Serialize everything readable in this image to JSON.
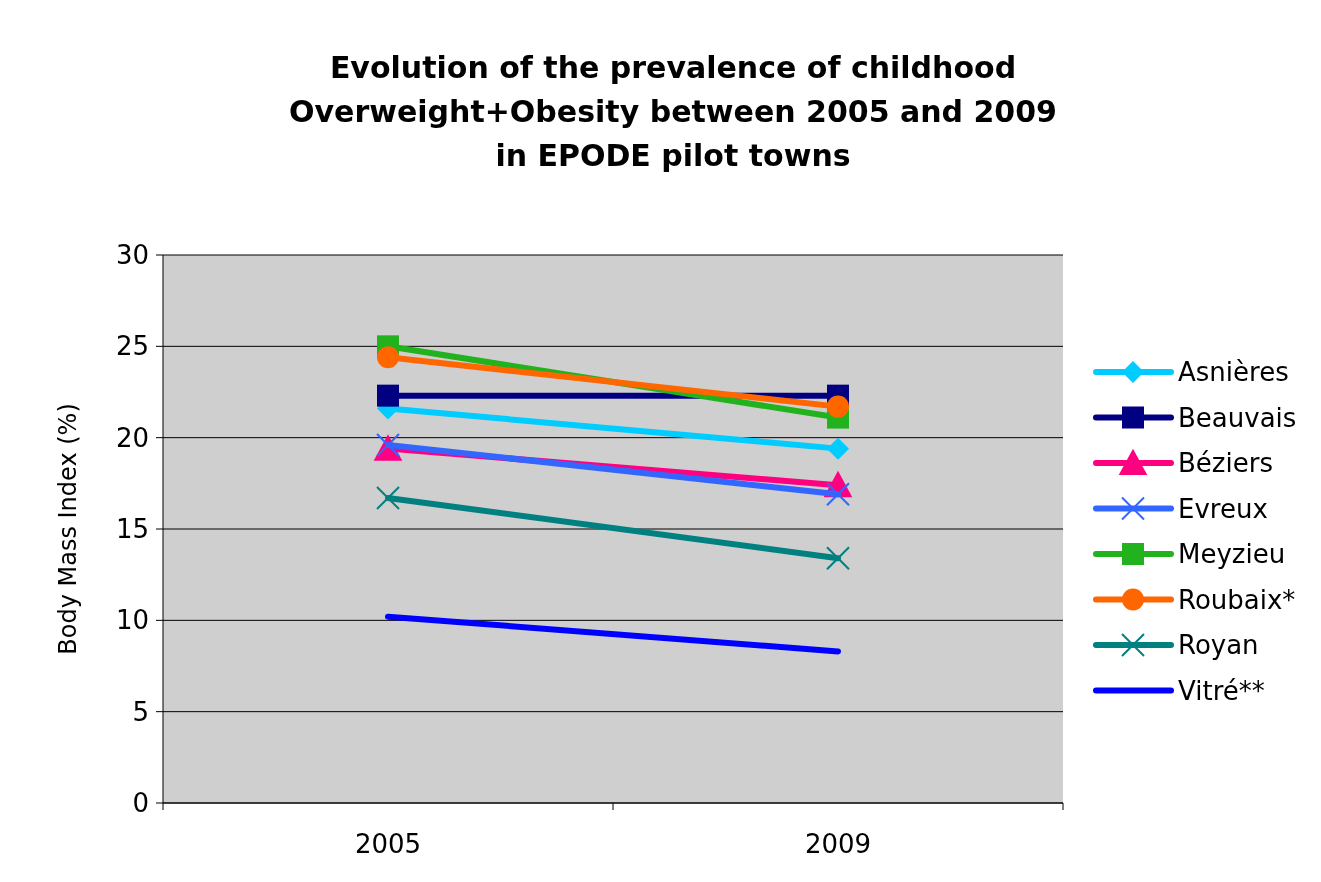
{
  "chart_data": {
    "type": "line",
    "title": "Evolution of the prevalence of childhood Overweight+Obesity between 2005 and 2009 in EPODE pilot towns",
    "ylabel": "Body Mass Index (%)",
    "categories": [
      "2005",
      "2009"
    ],
    "ylim": [
      0,
      30
    ],
    "yticks": [
      0,
      5,
      10,
      15,
      20,
      25,
      30
    ],
    "grid": "y",
    "legend": "right",
    "series": [
      {
        "name": "Asnières",
        "color": "#00ccff",
        "marker": "diamond",
        "values": [
          21.6,
          19.4
        ]
      },
      {
        "name": "Beauvais",
        "color": "#000080",
        "marker": "square",
        "values": [
          22.3,
          22.3
        ]
      },
      {
        "name": "Béziers",
        "color": "#ff0080",
        "marker": "triangle",
        "values": [
          19.4,
          17.4
        ]
      },
      {
        "name": "Evreux",
        "color": "#3366ff",
        "marker": "cross",
        "values": [
          19.6,
          16.9
        ]
      },
      {
        "name": "Meyzieu",
        "color": "#22b21d",
        "marker": "square",
        "values": [
          25.0,
          21.1
        ]
      },
      {
        "name": "Roubaix*",
        "color": "#ff6600",
        "marker": "circle",
        "values": [
          24.4,
          21.7
        ]
      },
      {
        "name": "Royan",
        "color": "#008080",
        "marker": "cross",
        "values": [
          16.7,
          13.4
        ]
      },
      {
        "name": "Vitré**",
        "color": "#0000ff",
        "marker": "none",
        "values": [
          10.2,
          8.3
        ]
      }
    ]
  }
}
